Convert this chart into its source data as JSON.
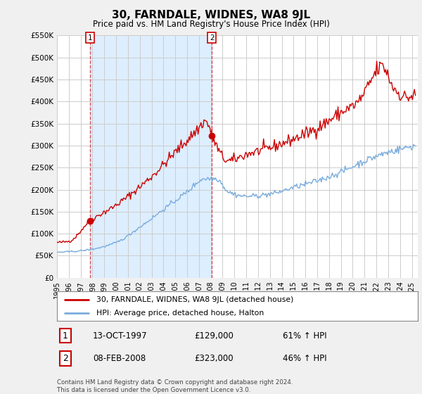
{
  "title": "30, FARNDALE, WIDNES, WA8 9JL",
  "subtitle": "Price paid vs. HM Land Registry's House Price Index (HPI)",
  "ylim": [
    0,
    550000
  ],
  "xlim_start": 1995.0,
  "xlim_end": 2025.5,
  "sale1_date": 1997.79,
  "sale1_price": 129000,
  "sale2_date": 2008.1,
  "sale2_price": 323000,
  "legend_line1": "30, FARNDALE, WIDNES, WA8 9JL (detached house)",
  "legend_line2": "HPI: Average price, detached house, Halton",
  "ann1_date": "13-OCT-1997",
  "ann1_price": "£129,000",
  "ann1_pct": "61% ↑ HPI",
  "ann2_date": "08-FEB-2008",
  "ann2_price": "£323,000",
  "ann2_pct": "46% ↑ HPI",
  "footnote": "Contains HM Land Registry data © Crown copyright and database right 2024.\nThis data is licensed under the Open Government Licence v3.0.",
  "red_color": "#cc0000",
  "blue_color": "#7aacdc",
  "shade_color": "#ddeeff",
  "bg_color": "#f0f0f0",
  "plot_bg": "#ffffff",
  "grid_color": "#cccccc"
}
